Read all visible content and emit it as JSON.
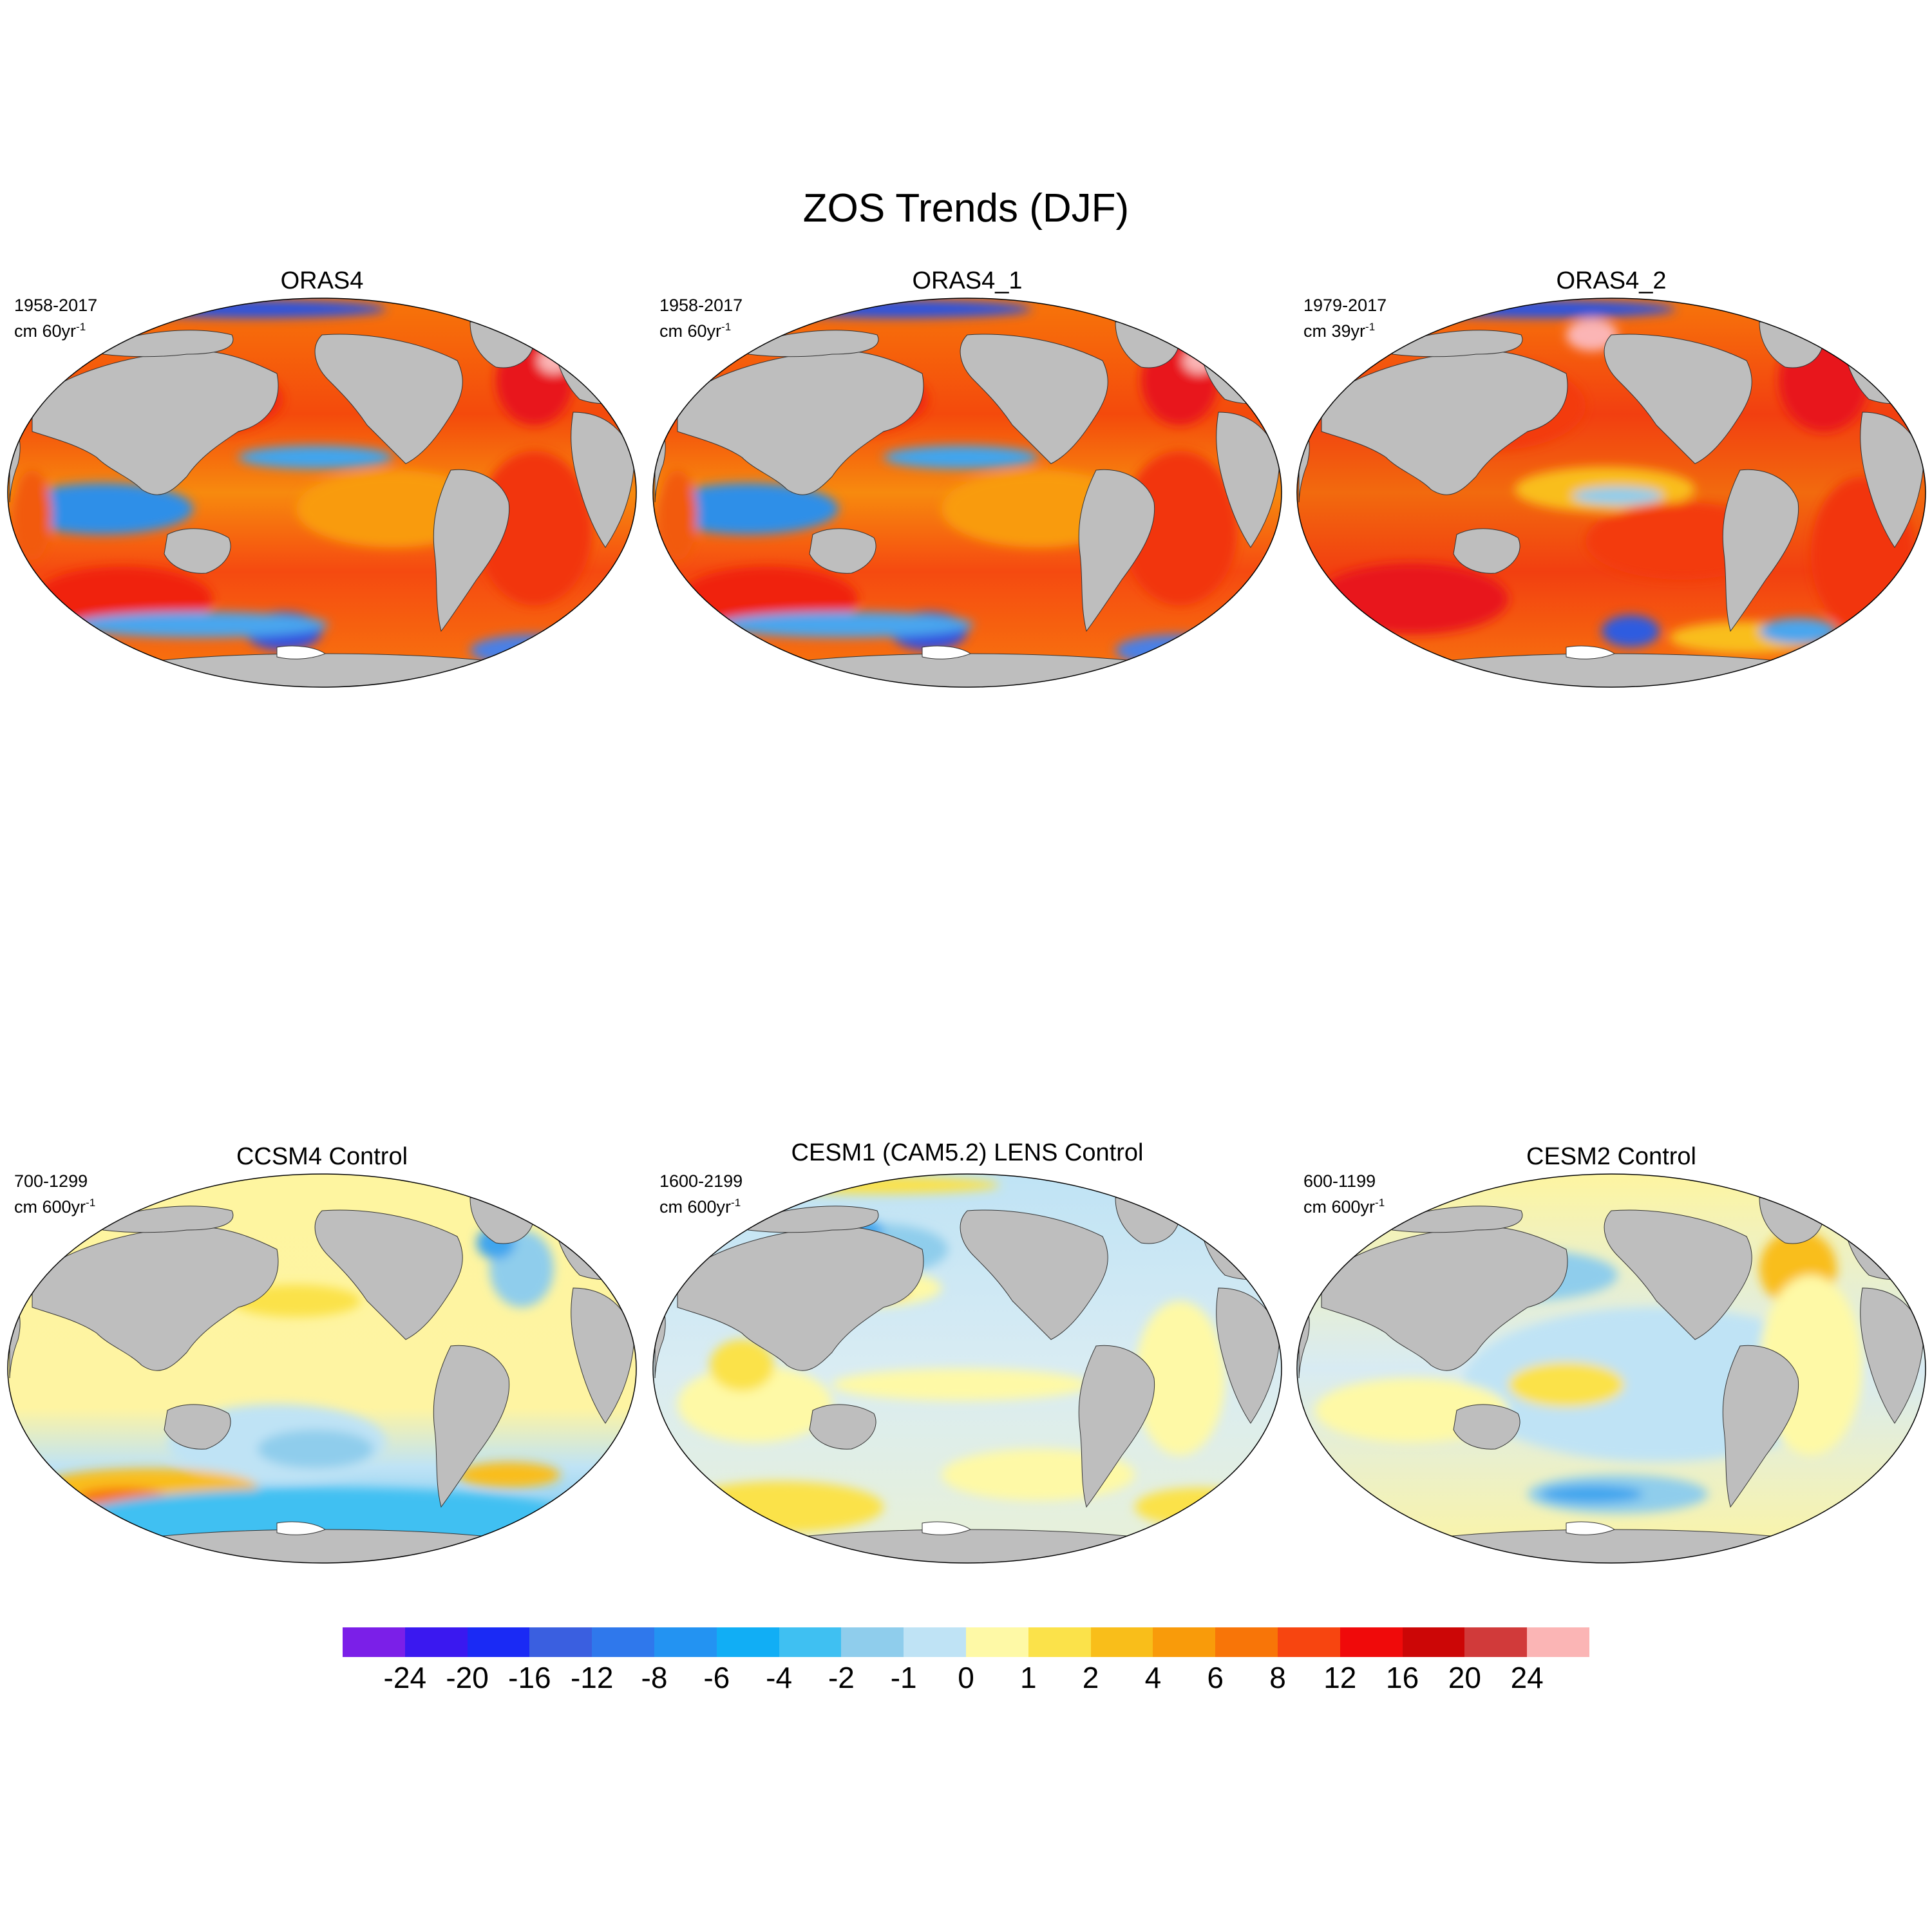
{
  "title": "ZOS Trends (DJF)",
  "panels": [
    {
      "title": "ORAS4",
      "period": "1958-2017",
      "units_prefix": "cm 60yr",
      "units_sup": "-1",
      "scheme": "warm"
    },
    {
      "title": "ORAS4_1",
      "period": "1958-2017",
      "units_prefix": "cm 60yr",
      "units_sup": "-1",
      "scheme": "warm"
    },
    {
      "title": "ORAS4_2",
      "period": "1979-2017",
      "units_prefix": "cm 39yr",
      "units_sup": "-1",
      "scheme": "warm2"
    },
    {
      "title": "CCSM4 Control",
      "period": "700-1299",
      "units_prefix": "cm 600yr",
      "units_sup": "-1",
      "scheme": "ccsm4"
    },
    {
      "title": "CESM1 (CAM5.2) LENS Control",
      "period": "1600-2199",
      "units_prefix": "cm 600yr",
      "units_sup": "-1",
      "scheme": "cesm1"
    },
    {
      "title": "CESM2 Control",
      "period": "600-1199",
      "units_prefix": "cm 600yr",
      "units_sup": "-1",
      "scheme": "cesm2"
    }
  ],
  "colorbar": {
    "labels": [
      "-24",
      "-20",
      "-16",
      "-12",
      "-8",
      "-6",
      "-4",
      "-2",
      "-1",
      "0",
      "1",
      "2",
      "4",
      "6",
      "8",
      "12",
      "16",
      "20",
      "24"
    ],
    "colors": [
      "#7b1fe8",
      "#3a18f0",
      "#1a2af5",
      "#3a5fe0",
      "#2f78ec",
      "#2393f2",
      "#11aef5",
      "#3fc0f2",
      "#8fcdec",
      "#bfe3f5",
      "#fef9a6",
      "#fbe24a",
      "#f9be1a",
      "#f99b0a",
      "#f87508",
      "#f74510",
      "#f00a0a",
      "#cc0606",
      "#d13a3a",
      "#fbb5b5"
    ]
  },
  "colors": {
    "land": "#bebebe",
    "ocean_outline": "#000000",
    "ice": "#ffffff"
  }
}
